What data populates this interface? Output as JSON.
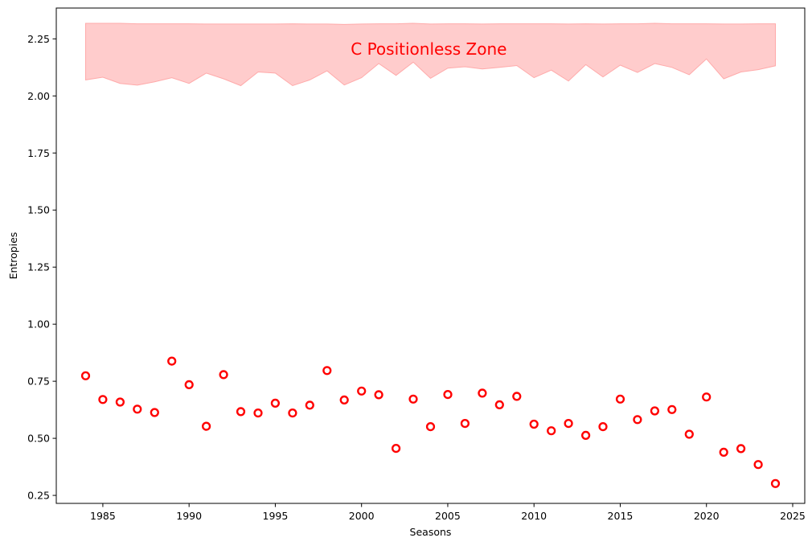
{
  "chart_data": {
    "type": "scatter",
    "title": "",
    "xlabel": "Seasons",
    "ylabel": "Entropies",
    "xlim": [
      1982.3,
      2025.7
    ],
    "ylim": [
      0.215,
      2.385
    ],
    "xticks": [
      1985,
      1990,
      1995,
      2000,
      2005,
      2010,
      2015,
      2020,
      2025
    ],
    "xtick_labels": [
      "1985",
      "1990",
      "1995",
      "2000",
      "2005",
      "2010",
      "2015",
      "2020",
      "2025"
    ],
    "yticks": [
      0.25,
      0.5,
      0.75,
      1.0,
      1.25,
      1.5,
      1.75,
      2.0,
      2.25
    ],
    "ytick_labels": [
      "0.25",
      "0.50",
      "0.75",
      "1.00",
      "1.25",
      "1.50",
      "1.75",
      "2.00",
      "2.25"
    ],
    "grid": false,
    "marker_color": "#ff0000",
    "zone_fill_color": "#ffcccc",
    "zone_edge_color": "#ffaaaa",
    "series": [
      {
        "marker": "hollow-circle",
        "color": "#ff0000",
        "x": [
          1984,
          1985,
          1986,
          1987,
          1988,
          1989,
          1990,
          1991,
          1992,
          1993,
          1994,
          1995,
          1996,
          1997,
          1998,
          1999,
          2000,
          2001,
          2002,
          2003,
          2004,
          2005,
          2006,
          2007,
          2008,
          2009,
          2010,
          2011,
          2012,
          2013,
          2014,
          2015,
          2016,
          2017,
          2018,
          2019,
          2020,
          2021,
          2022,
          2023,
          2024
        ],
        "y": [
          0.774,
          0.67,
          0.659,
          0.628,
          0.613,
          0.838,
          0.735,
          0.553,
          0.779,
          0.617,
          0.611,
          0.654,
          0.611,
          0.645,
          0.797,
          0.668,
          0.707,
          0.691,
          0.456,
          0.672,
          0.551,
          0.692,
          0.565,
          0.698,
          0.647,
          0.684,
          0.562,
          0.533,
          0.565,
          0.513,
          0.551,
          0.672,
          0.582,
          0.62,
          0.626,
          0.518,
          0.681,
          0.439,
          0.455,
          0.385,
          0.302
        ]
      }
    ],
    "zone": {
      "label": "C Positionless Zone",
      "label_color": "#ff0000",
      "label_position": [
        2003.9,
        2.2
      ],
      "x": [
        1984,
        1985,
        1986,
        1987,
        1988,
        1989,
        1990,
        1991,
        1992,
        1993,
        1994,
        1995,
        1996,
        1997,
        1998,
        1999,
        2000,
        2001,
        2002,
        2003,
        2004,
        2005,
        2006,
        2007,
        2008,
        2009,
        2010,
        2011,
        2012,
        2013,
        2014,
        2015,
        2016,
        2017,
        2018,
        2019,
        2020,
        2021,
        2022,
        2023,
        2024
      ],
      "lower": [
        2.07,
        2.082,
        2.055,
        2.047,
        2.062,
        2.08,
        2.055,
        2.1,
        2.075,
        2.045,
        2.105,
        2.1,
        2.045,
        2.07,
        2.11,
        2.048,
        2.08,
        2.142,
        2.09,
        2.148,
        2.077,
        2.122,
        2.128,
        2.118,
        2.125,
        2.133,
        2.08,
        2.113,
        2.065,
        2.137,
        2.083,
        2.135,
        2.103,
        2.142,
        2.125,
        2.093,
        2.162,
        2.075,
        2.105,
        2.115,
        2.132
      ],
      "upper": [
        2.318,
        2.318,
        2.318,
        2.316,
        2.316,
        2.316,
        2.316,
        2.315,
        2.315,
        2.315,
        2.315,
        2.315,
        2.316,
        2.315,
        2.315,
        2.313,
        2.315,
        2.316,
        2.316,
        2.318,
        2.315,
        2.316,
        2.316,
        2.315,
        2.316,
        2.316,
        2.316,
        2.316,
        2.315,
        2.316,
        2.315,
        2.316,
        2.316,
        2.318,
        2.316,
        2.316,
        2.316,
        2.315,
        2.315,
        2.316,
        2.316
      ]
    }
  }
}
